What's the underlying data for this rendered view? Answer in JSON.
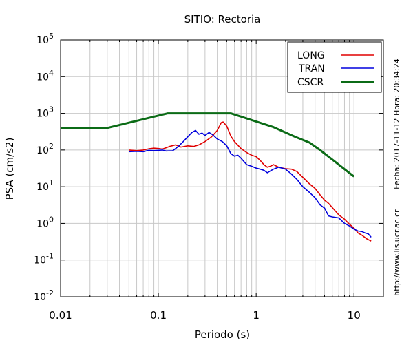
{
  "chart_data": {
    "type": "line",
    "title": "SITIO: Rectoria",
    "xlabel": "Periodo (s)",
    "ylabel": "PSA (cm/s2)",
    "x_scale": "log",
    "y_scale": "log",
    "xlim": [
      0.01,
      20
    ],
    "ylim": [
      0.01,
      100000
    ],
    "x_ticks": [
      {
        "value": 0.01,
        "label": "0.01"
      },
      {
        "value": 0.1,
        "label": "0.1"
      },
      {
        "value": 1,
        "label": "1"
      },
      {
        "value": 10,
        "label": "10"
      }
    ],
    "y_ticks": [
      {
        "value": 0.01,
        "base": "10",
        "exp": "-2"
      },
      {
        "value": 0.1,
        "base": "10",
        "exp": "-1"
      },
      {
        "value": 1,
        "base": "10",
        "exp": "0"
      },
      {
        "value": 10,
        "base": "10",
        "exp": "1"
      },
      {
        "value": 100,
        "base": "10",
        "exp": "2"
      },
      {
        "value": 1000,
        "base": "10",
        "exp": "3"
      },
      {
        "value": 10000,
        "base": "10",
        "exp": "4"
      },
      {
        "value": 100000,
        "base": "10",
        "exp": "5"
      }
    ],
    "grid": true,
    "legend_position": "top-right",
    "side_text": "Fecha: 2017-11-12  Hora: 20:34:24",
    "footer_text": "http://www.lis.ucr.ac.cr",
    "series": [
      {
        "name": "LONG",
        "color": "#e00000",
        "stroke_width": 1.6,
        "points": [
          [
            0.05,
            100
          ],
          [
            0.06,
            96
          ],
          [
            0.07,
            100
          ],
          [
            0.08,
            108
          ],
          [
            0.09,
            112
          ],
          [
            0.1,
            110
          ],
          [
            0.11,
            106
          ],
          [
            0.13,
            125
          ],
          [
            0.15,
            138
          ],
          [
            0.17,
            120
          ],
          [
            0.2,
            130
          ],
          [
            0.23,
            125
          ],
          [
            0.26,
            138
          ],
          [
            0.3,
            170
          ],
          [
            0.35,
            230
          ],
          [
            0.4,
            340
          ],
          [
            0.44,
            560
          ],
          [
            0.46,
            580
          ],
          [
            0.5,
            450
          ],
          [
            0.55,
            240
          ],
          [
            0.6,
            170
          ],
          [
            0.7,
            110
          ],
          [
            0.8,
            85
          ],
          [
            0.9,
            72
          ],
          [
            1.0,
            66
          ],
          [
            1.1,
            52
          ],
          [
            1.2,
            40
          ],
          [
            1.3,
            34
          ],
          [
            1.4,
            36
          ],
          [
            1.5,
            40
          ],
          [
            1.7,
            34
          ],
          [
            2.0,
            31
          ],
          [
            2.3,
            30
          ],
          [
            2.6,
            26
          ],
          [
            3.0,
            18
          ],
          [
            3.5,
            12
          ],
          [
            4.0,
            9
          ],
          [
            4.5,
            6
          ],
          [
            5.0,
            4.3
          ],
          [
            5.5,
            3.5
          ],
          [
            6.0,
            2.7
          ],
          [
            7.0,
            1.7
          ],
          [
            8.0,
            1.3
          ],
          [
            9.0,
            0.95
          ],
          [
            10,
            0.75
          ],
          [
            11,
            0.55
          ],
          [
            12,
            0.48
          ],
          [
            13.5,
            0.38
          ],
          [
            15,
            0.33
          ]
        ]
      },
      {
        "name": "TRAN",
        "color": "#0000dd",
        "stroke_width": 1.6,
        "points": [
          [
            0.05,
            90
          ],
          [
            0.06,
            92
          ],
          [
            0.07,
            90
          ],
          [
            0.08,
            98
          ],
          [
            0.09,
            96
          ],
          [
            0.1,
            98
          ],
          [
            0.11,
            100
          ],
          [
            0.12,
            94
          ],
          [
            0.14,
            95
          ],
          [
            0.16,
            125
          ],
          [
            0.18,
            170
          ],
          [
            0.2,
            230
          ],
          [
            0.22,
            300
          ],
          [
            0.24,
            340
          ],
          [
            0.26,
            270
          ],
          [
            0.28,
            290
          ],
          [
            0.3,
            250
          ],
          [
            0.33,
            300
          ],
          [
            0.36,
            260
          ],
          [
            0.4,
            200
          ],
          [
            0.45,
            170
          ],
          [
            0.5,
            130
          ],
          [
            0.55,
            80
          ],
          [
            0.6,
            68
          ],
          [
            0.65,
            72
          ],
          [
            0.7,
            60
          ],
          [
            0.8,
            40
          ],
          [
            0.9,
            36
          ],
          [
            1.0,
            32
          ],
          [
            1.1,
            30
          ],
          [
            1.2,
            28
          ],
          [
            1.3,
            24
          ],
          [
            1.5,
            30
          ],
          [
            1.7,
            34
          ],
          [
            2.0,
            30
          ],
          [
            2.3,
            22
          ],
          [
            2.6,
            16
          ],
          [
            3.0,
            10
          ],
          [
            3.5,
            7
          ],
          [
            4.0,
            5
          ],
          [
            4.5,
            3.2
          ],
          [
            5.0,
            2.6
          ],
          [
            5.5,
            1.6
          ],
          [
            6.0,
            1.5
          ],
          [
            7.0,
            1.4
          ],
          [
            8.0,
            1.0
          ],
          [
            9.0,
            0.85
          ],
          [
            10,
            0.7
          ],
          [
            11,
            0.62
          ],
          [
            12,
            0.6
          ],
          [
            13,
            0.55
          ],
          [
            14,
            0.52
          ],
          [
            15,
            0.42
          ]
        ]
      },
      {
        "name": "CSCR",
        "color": "#0b6b16",
        "stroke_width": 3,
        "points": [
          [
            0.01,
            400
          ],
          [
            0.03,
            400
          ],
          [
            0.125,
            1000
          ],
          [
            0.55,
            1000
          ],
          [
            1.5,
            420
          ],
          [
            2.5,
            230
          ],
          [
            3.5,
            160
          ],
          [
            4.5,
            100
          ],
          [
            6,
            55
          ],
          [
            8,
            30
          ],
          [
            10,
            19
          ]
        ]
      }
    ]
  }
}
